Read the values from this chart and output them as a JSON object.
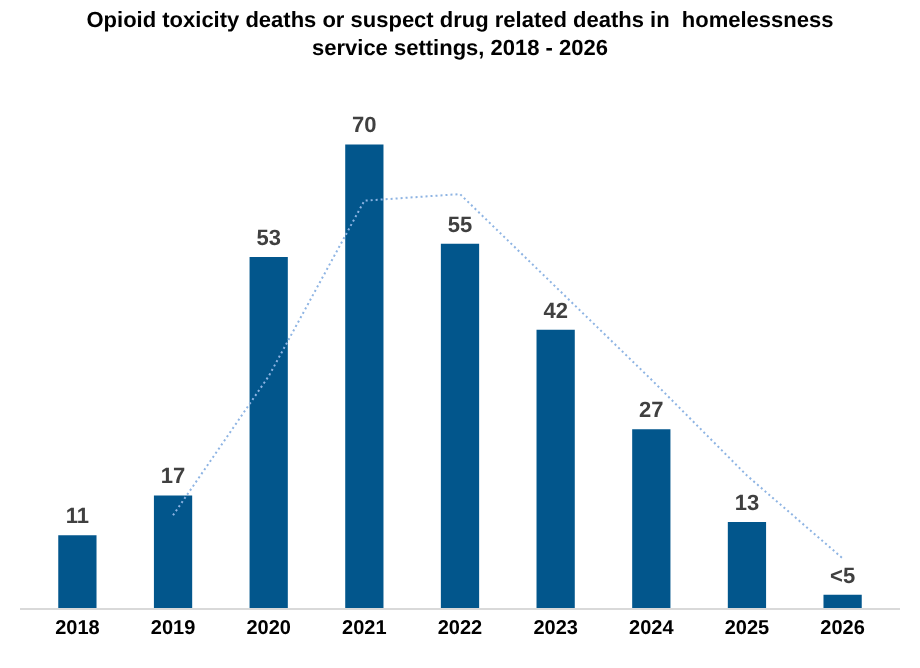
{
  "chart_data": {
    "type": "bar",
    "title": "Opioid toxicity deaths or suspect drug related deaths in  homelessness service settings, 2018 - 2026",
    "categories": [
      "2018",
      "2019",
      "2020",
      "2021",
      "2022",
      "2023",
      "2024",
      "2025",
      "2026"
    ],
    "series": [
      {
        "color": "#02568c",
        "values": [
          11,
          17,
          53,
          70,
          55,
          42,
          27,
          13,
          2
        ],
        "value_labels": [
          "11",
          "17",
          "53",
          "70",
          "55",
          "42",
          "27",
          "13",
          "<5"
        ]
      },
      {
        "type": "line",
        "color": "#8eb4e3",
        "line_style": "dotted",
        "values": [
          null,
          14,
          35,
          61.5,
          62.5,
          48.5,
          34.5,
          20,
          7.5
        ]
      }
    ],
    "legend": false
  }
}
